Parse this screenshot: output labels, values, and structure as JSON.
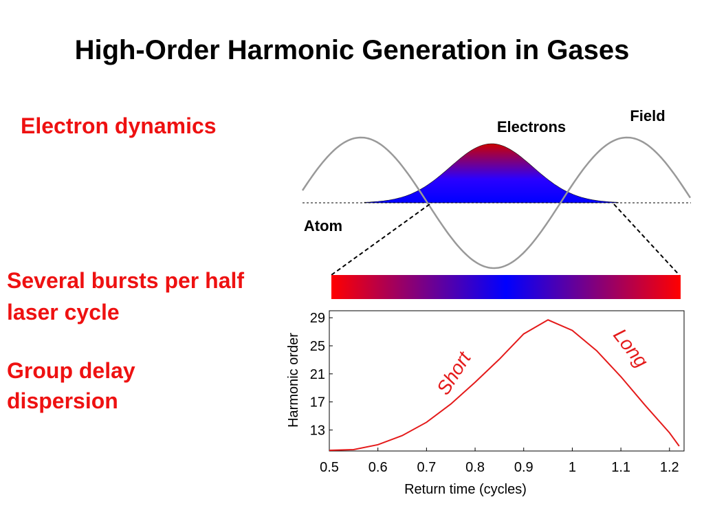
{
  "slide": {
    "title": "High-Order Harmonic Generation in Gases",
    "points": [
      "Electron dynamics",
      "Several bursts per half laser cycle",
      "Group delay dispersion"
    ]
  },
  "diagram": {
    "field_label": "Field",
    "electrons_label": "Electrons",
    "atom_label": "Atom"
  },
  "chart_data": {
    "type": "line",
    "x_label": "Return time (cycles)",
    "y_label": "Harmonic order",
    "x": [
      0.5,
      0.55,
      0.6,
      0.65,
      0.7,
      0.75,
      0.8,
      0.85,
      0.9,
      0.95,
      1.0,
      1.05,
      1.1,
      1.15,
      1.2,
      1.22
    ],
    "series": [
      {
        "name": "Harmonic order",
        "color": "#e41a1a",
        "values": [
          10.1,
          10.2,
          10.9,
          12.2,
          14.1,
          16.7,
          19.8,
          23.1,
          26.7,
          28.7,
          27.2,
          24.3,
          20.6,
          16.5,
          12.6,
          10.7
        ]
      }
    ],
    "xlim": [
      0.5,
      1.23
    ],
    "ylim": [
      10,
      30
    ],
    "xticks": [
      0.5,
      0.6,
      0.7,
      0.8,
      0.9,
      1,
      1.1,
      1.2
    ],
    "yticks": [
      13,
      17,
      21,
      25,
      29
    ],
    "annotations": [
      "Short",
      "Long"
    ]
  }
}
